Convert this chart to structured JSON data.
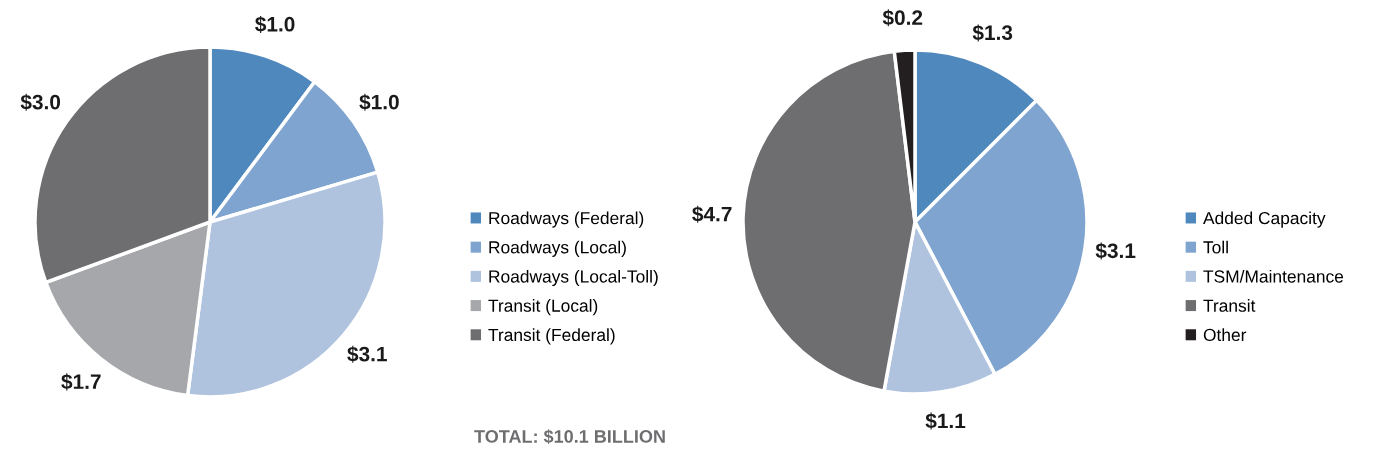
{
  "chart_data": [
    {
      "type": "pie",
      "categories": [
        "Roadways (Federal)",
        "Roadways (Local)",
        "Roadways (Local-Toll)",
        "Transit (Local)",
        "Transit (Federal)"
      ],
      "values": [
        1.0,
        1.0,
        3.1,
        1.7,
        3.0
      ],
      "value_labels": [
        "$1.0",
        "$1.0",
        "$3.1",
        "$1.7",
        "$3.0"
      ],
      "colors": [
        "#4f88bd",
        "#7fa4cf",
        "#afc3df",
        "#a6a7aa",
        "#6e6e71"
      ],
      "legend": "right",
      "annotations": [
        "TOTAL: $10.1 BILLION"
      ]
    },
    {
      "type": "pie",
      "categories": [
        "Added Capacity",
        "Toll",
        "TSM/Maintenance",
        "Transit",
        "Other"
      ],
      "values": [
        1.3,
        3.1,
        1.1,
        4.7,
        0.2
      ],
      "value_labels": [
        "$1.3",
        "$3.1",
        "$1.1",
        "$4.7",
        "$0.2"
      ],
      "colors": [
        "#4f88bd",
        "#7fa4cf",
        "#afc3df",
        "#6e6e71",
        "#231f20"
      ],
      "legend": "right"
    }
  ]
}
